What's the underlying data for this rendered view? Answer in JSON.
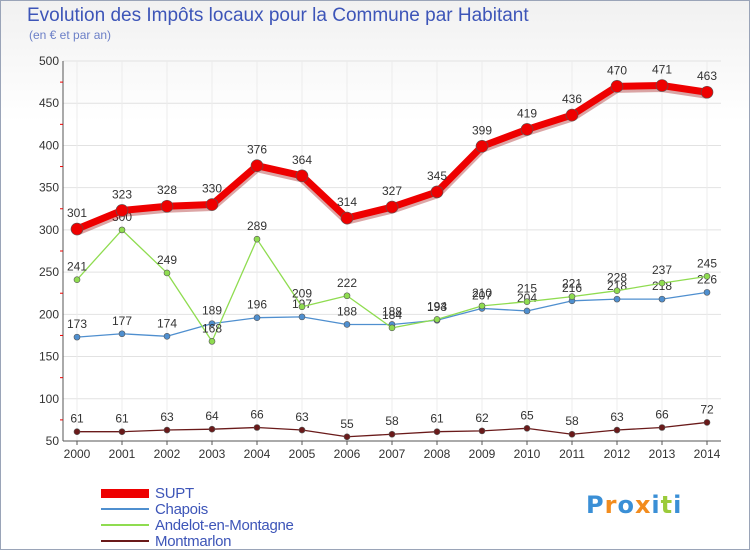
{
  "title": "Evolution des Impôts locaux pour la Commune par Habitant",
  "subtitle": "(en € et par an)",
  "brand": "Proxiti",
  "colors": {
    "SUPT": "#ee0000",
    "Chapois": "#4f8fcf",
    "Andelot-en-Montagne": "#8fdc50",
    "Montmarlon": "#6a1a1a"
  },
  "chart_data": {
    "type": "line",
    "title": "Evolution des Impôts locaux pour la Commune par Habitant",
    "subtitle": "(en € et par an)",
    "xlabel": "",
    "ylabel": "",
    "x": [
      "2000",
      "2001",
      "2002",
      "2003",
      "2004",
      "2005",
      "2006",
      "2007",
      "2008",
      "2009",
      "2010",
      "2011",
      "2012",
      "2013",
      "2014"
    ],
    "yticks": [
      "50",
      "100",
      "150",
      "200",
      "250",
      "300",
      "350",
      "400",
      "450",
      "500"
    ],
    "ylim": [
      50,
      500
    ],
    "grid": true,
    "legend_position": "bottom-left",
    "series": [
      {
        "name": "SUPT",
        "values": [
          301,
          323,
          328,
          330,
          376,
          364,
          314,
          327,
          345,
          399,
          419,
          436,
          470,
          471,
          463
        ]
      },
      {
        "name": "Chapois",
        "values": [
          173,
          177,
          174,
          189,
          196,
          197,
          188,
          188,
          193,
          207,
          204,
          216,
          218,
          218,
          226
        ]
      },
      {
        "name": "Andelot-en-Montagne",
        "values": [
          241,
          300,
          249,
          168,
          289,
          209,
          222,
          184,
          194,
          210,
          215,
          221,
          228,
          237,
          245
        ]
      },
      {
        "name": "Montmarlon",
        "values": [
          61,
          61,
          63,
          64,
          66,
          63,
          55,
          58,
          61,
          62,
          65,
          58,
          63,
          66,
          72
        ]
      }
    ]
  }
}
